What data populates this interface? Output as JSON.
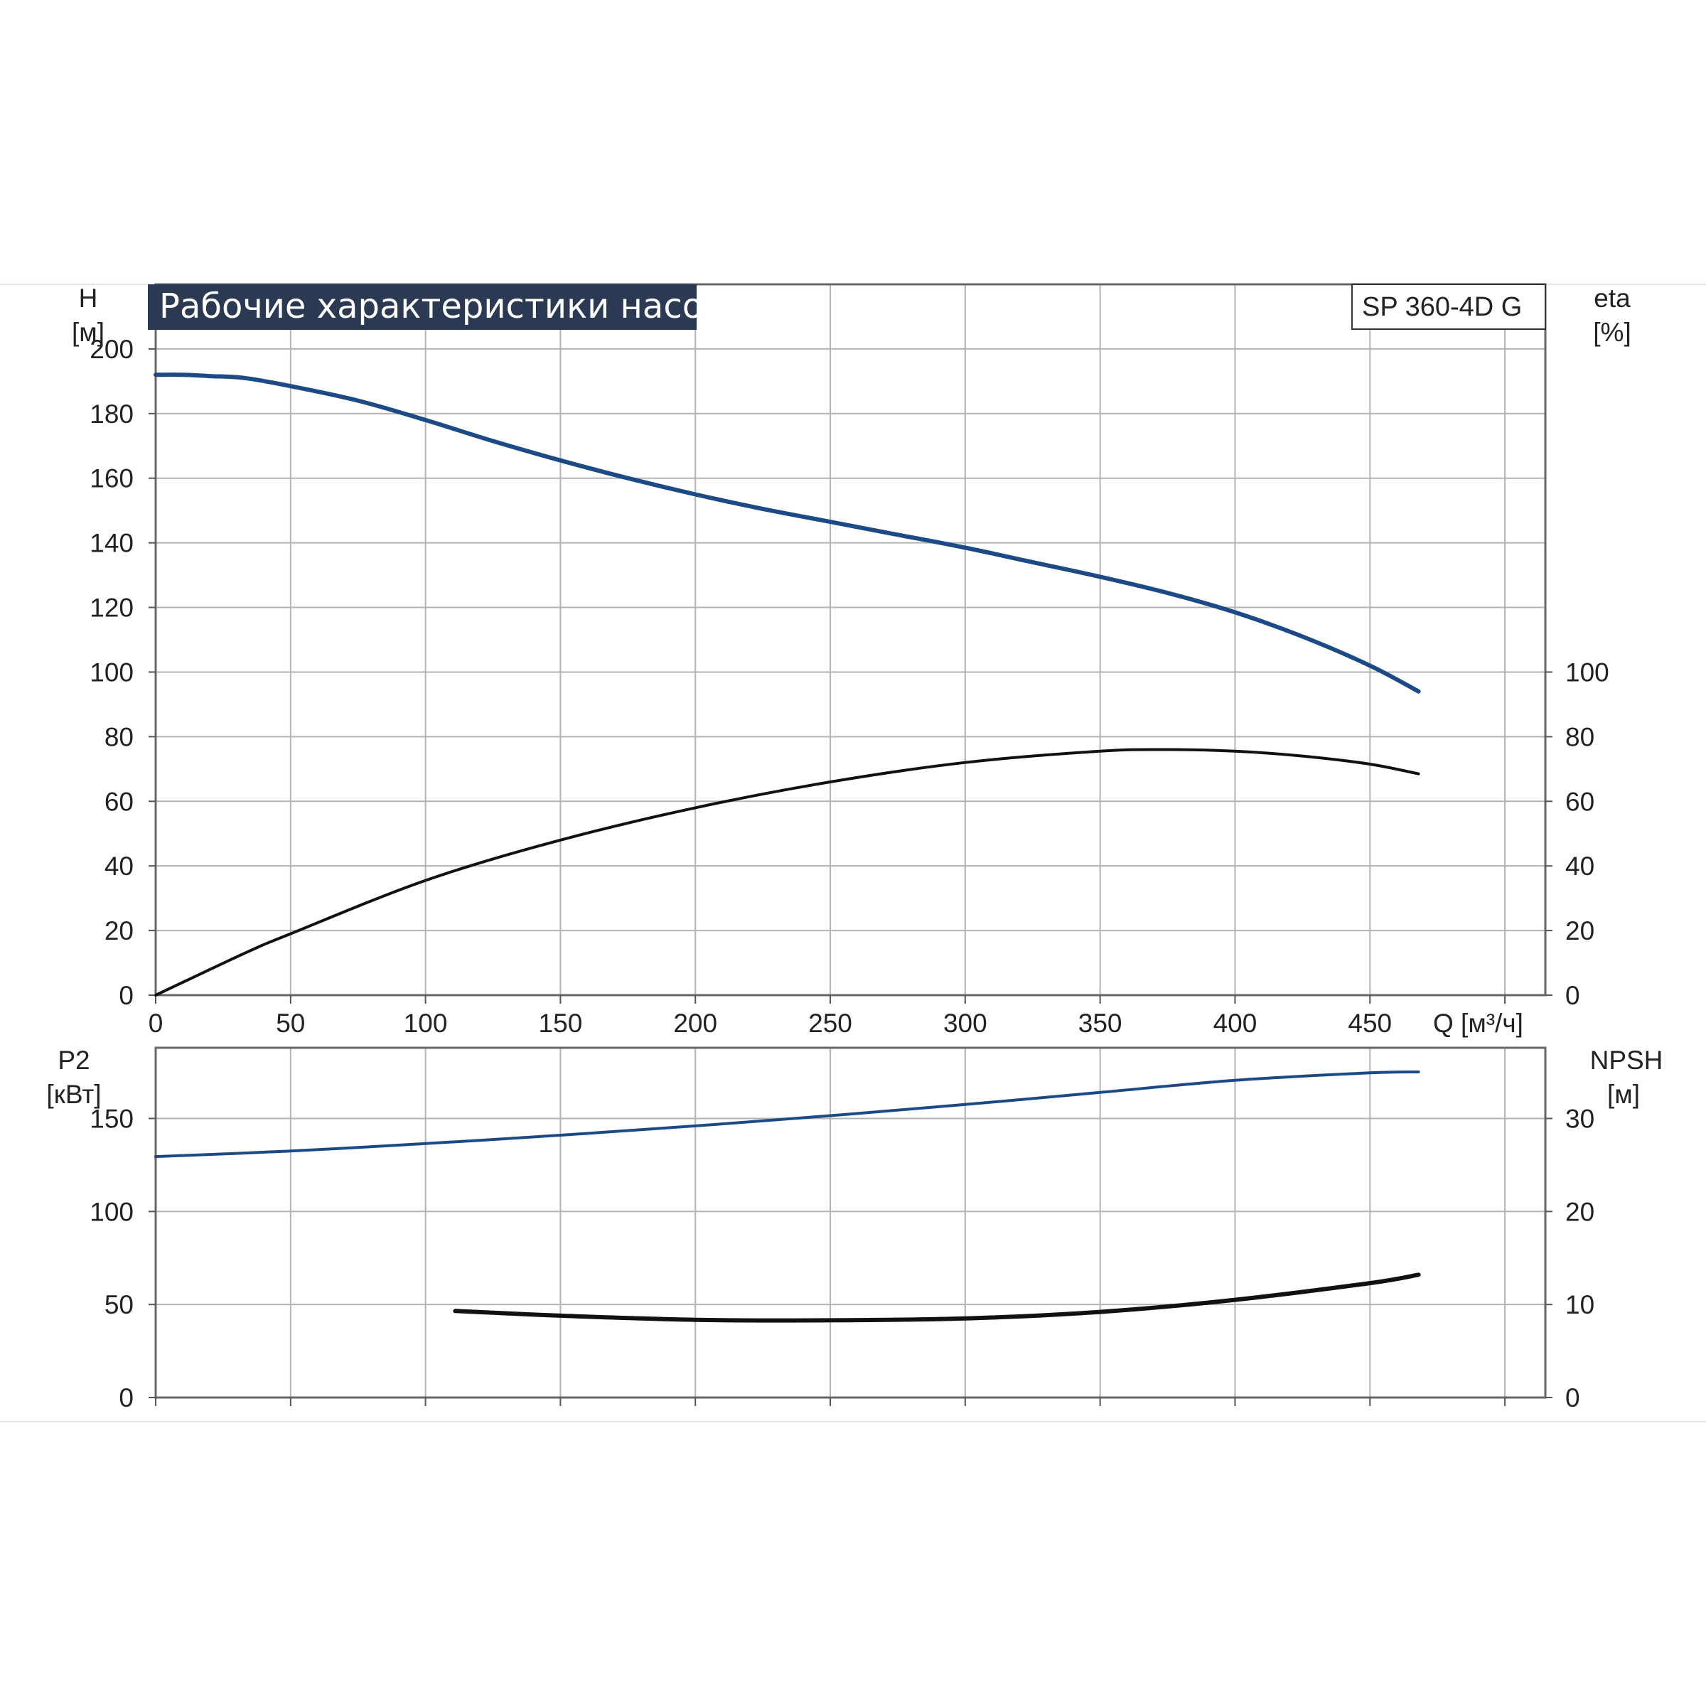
{
  "title": "Рабочие характеристики насоса",
  "model": "SP 360-4D G",
  "colors": {
    "head": "#1b4a87",
    "efficiency": "#111111",
    "power": "#1b4a87",
    "npsh": "#111111",
    "grid": "#b3b3b3",
    "axis": "#555555",
    "title_bg": "#2b3a52"
  },
  "chart_data": [
    {
      "type": "line",
      "panel": "top",
      "grid": true,
      "x_axis": {
        "label": "Q [м³/ч]",
        "ticks": [
          "0",
          "50",
          "100",
          "150",
          "200",
          "250",
          "300",
          "350",
          "400",
          "450"
        ],
        "lim": [
          0,
          515
        ]
      },
      "y_left": {
        "label_line1": "H",
        "label_line2": "[м]",
        "ticks": [
          "0",
          "20",
          "40",
          "60",
          "80",
          "100",
          "120",
          "140",
          "160",
          "180",
          "200"
        ],
        "lim": [
          0,
          220
        ]
      },
      "y_right": {
        "label_line1": "eta",
        "label_line2": "[%]",
        "ticks": [
          "0",
          "20",
          "40",
          "60",
          "80",
          "100"
        ],
        "lim": [
          0,
          220
        ]
      },
      "series": [
        {
          "role": "head",
          "axis": "left",
          "x": [
            0,
            10,
            20,
            33,
            50,
            75,
            100,
            125,
            150,
            175,
            200,
            225,
            250,
            275,
            300,
            325,
            350,
            375,
            400,
            425,
            450,
            468
          ],
          "y": [
            192,
            192,
            191.6,
            191,
            188.5,
            184,
            178,
            171.5,
            165.5,
            160,
            155,
            150.5,
            146.5,
            142.5,
            138.5,
            134,
            129.5,
            124.5,
            118.5,
            111,
            102,
            94
          ]
        },
        {
          "role": "efficiency",
          "axis": "right",
          "x": [
            0,
            33,
            50,
            100,
            150,
            200,
            250,
            300,
            350,
            375,
            400,
            425,
            450,
            468
          ],
          "y": [
            0,
            13,
            19,
            35.5,
            48,
            58,
            66,
            72,
            75.5,
            76,
            75.5,
            74,
            71.5,
            68.5
          ]
        }
      ]
    },
    {
      "type": "line",
      "panel": "bottom",
      "grid": true,
      "x_axis": {
        "lim": [
          0,
          515
        ]
      },
      "y_left": {
        "label_line1": "P2",
        "label_line2": "[кВт]",
        "ticks": [
          "0",
          "50",
          "100",
          "150"
        ],
        "lim": [
          0,
          188
        ]
      },
      "y_right": {
        "label_line1": "NPSH",
        "label_line2": "[м]",
        "ticks": [
          "0",
          "10",
          "20",
          "30"
        ],
        "lim": [
          0,
          37.6
        ]
      },
      "series": [
        {
          "role": "power",
          "axis": "left",
          "x": [
            0,
            50,
            100,
            150,
            200,
            250,
            300,
            350,
            400,
            450,
            468
          ],
          "y": [
            129.5,
            132.5,
            136.5,
            141,
            146,
            151.5,
            157.5,
            164,
            170.5,
            174.5,
            175
          ]
        },
        {
          "role": "npsh",
          "axis": "right",
          "x": [
            111,
            150,
            200,
            250,
            300,
            350,
            400,
            450,
            468
          ],
          "y": [
            9.3,
            8.8,
            8.35,
            8.3,
            8.5,
            9.2,
            10.5,
            12.3,
            13.2
          ]
        }
      ]
    }
  ]
}
